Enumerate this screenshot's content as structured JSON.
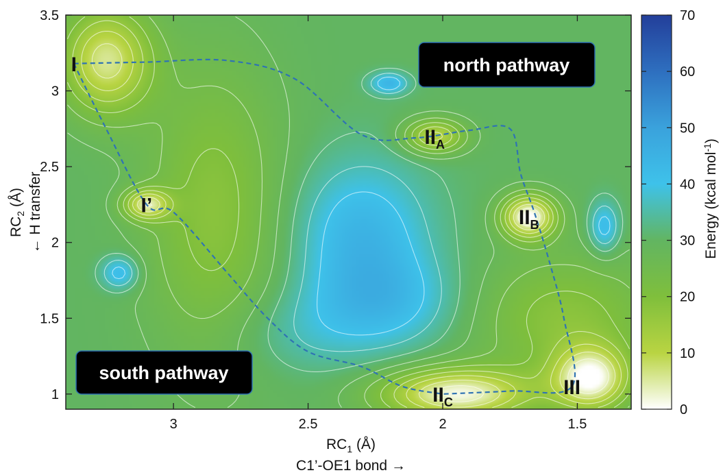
{
  "chart_data": {
    "type": "heatmap",
    "x_axis": {
      "label_main": "RC",
      "label_sub": "1",
      "label_unit": " (Å)",
      "label_second_line": "C1’-OE1 bond  →",
      "range": [
        3.4,
        1.3
      ],
      "reversed": true,
      "ticks": [
        3,
        2.5,
        2,
        1.5
      ],
      "tick_labels": [
        "3",
        "2.5",
        "2",
        "1.5"
      ]
    },
    "y_axis": {
      "label_main": "RC",
      "label_sub": "2",
      "label_unit": " (Å)",
      "label_second_line": "← H transfer",
      "range": [
        0.9,
        3.5
      ],
      "ticks": [
        1,
        1.5,
        2,
        2.5,
        3,
        3.5
      ],
      "tick_labels": [
        "1",
        "1.5",
        "2",
        "2.5",
        "3",
        "3.5"
      ]
    },
    "colorbar": {
      "label_main": "Energy (kcal mol",
      "label_sup": "-1",
      "label_end": ")",
      "range": [
        0,
        70
      ],
      "ticks": [
        0,
        10,
        20,
        30,
        40,
        50,
        60,
        70
      ],
      "tick_labels": [
        "0",
        "10",
        "20",
        "30",
        "40",
        "50",
        "60",
        "70"
      ],
      "colors": [
        {
          "value": 0,
          "color": "#ffffff"
        },
        {
          "value": 10,
          "color": "#b9d442"
        },
        {
          "value": 20,
          "color": "#7fbf3c"
        },
        {
          "value": 30,
          "color": "#62b561"
        },
        {
          "value": 40,
          "color": "#3ec2ea"
        },
        {
          "value": 50,
          "color": "#3aa2dc"
        },
        {
          "value": 60,
          "color": "#2e6fbf"
        },
        {
          "value": 70,
          "color": "#233f9a"
        }
      ]
    },
    "points": [
      {
        "id": "I",
        "main": "I",
        "sub": "",
        "x": 3.37,
        "y": 3.18
      },
      {
        "id": "Iprime",
        "main": "I’",
        "sub": "",
        "x": 3.1,
        "y": 2.25
      },
      {
        "id": "IIA",
        "main": "II",
        "sub": "A",
        "x": 2.03,
        "y": 2.7
      },
      {
        "id": "IIB",
        "main": "II",
        "sub": "B",
        "x": 1.68,
        "y": 2.17
      },
      {
        "id": "IIC",
        "main": "II",
        "sub": "C",
        "x": 2.0,
        "y": 1.0
      },
      {
        "id": "III",
        "main": "III",
        "sub": "",
        "x": 1.52,
        "y": 1.05
      }
    ],
    "north_path": [
      [
        3.37,
        3.18
      ],
      [
        3.1,
        3.19
      ],
      [
        2.8,
        3.2
      ],
      [
        2.55,
        3.08
      ],
      [
        2.3,
        2.71
      ],
      [
        2.1,
        2.69
      ],
      [
        1.9,
        2.74
      ],
      [
        1.75,
        2.75
      ],
      [
        1.71,
        2.45
      ],
      [
        1.66,
        2.2
      ],
      [
        1.6,
        1.85
      ],
      [
        1.55,
        1.5
      ],
      [
        1.52,
        1.05
      ],
      [
        1.75,
        1.02
      ],
      [
        2.0,
        1.0
      ]
    ],
    "south_path": [
      [
        3.37,
        3.18
      ],
      [
        3.25,
        2.75
      ],
      [
        3.1,
        2.25
      ],
      [
        3.0,
        2.2
      ],
      [
        2.8,
        1.8
      ],
      [
        2.65,
        1.5
      ],
      [
        2.5,
        1.28
      ],
      [
        2.3,
        1.18
      ],
      [
        2.15,
        1.05
      ],
      [
        2.0,
        1.0
      ]
    ],
    "basins": [
      {
        "x": 3.25,
        "y": 3.2,
        "depth": 24,
        "sx": 0.12,
        "sy": 0.25
      },
      {
        "x": 3.1,
        "y": 2.25,
        "depth": 22,
        "sx": 0.06,
        "sy": 0.07
      },
      {
        "x": 2.03,
        "y": 2.7,
        "depth": 20,
        "sx": 0.08,
        "sy": 0.08
      },
      {
        "x": 1.68,
        "y": 2.17,
        "depth": 30,
        "sx": 0.07,
        "sy": 0.1
      },
      {
        "x": 1.95,
        "y": 1.0,
        "depth": 28,
        "sx": 0.2,
        "sy": 0.12
      },
      {
        "x": 1.45,
        "y": 1.1,
        "depth": 27,
        "sx": 0.1,
        "sy": 0.15
      },
      {
        "x": 2.85,
        "y": 2.2,
        "depth": 12,
        "sx": 0.18,
        "sy": 0.7
      },
      {
        "x": 1.55,
        "y": 1.5,
        "depth": 12,
        "sx": 0.25,
        "sy": 0.3
      }
    ],
    "hills": [
      {
        "x": 2.3,
        "y": 2.05,
        "height": 14,
        "sx": 0.18,
        "sy": 0.35
      },
      {
        "x": 2.2,
        "y": 1.6,
        "height": 10,
        "sx": 0.2,
        "sy": 0.22
      },
      {
        "x": 3.2,
        "y": 1.8,
        "height": 13,
        "sx": 0.05,
        "sy": 0.08
      },
      {
        "x": 2.2,
        "y": 3.05,
        "height": 14,
        "sx": 0.05,
        "sy": 0.05
      },
      {
        "x": 1.4,
        "y": 2.1,
        "height": 13,
        "sx": 0.04,
        "sy": 0.12
      },
      {
        "x": 2.55,
        "y": 1.4,
        "height": 5,
        "sx": 0.2,
        "sy": 0.2
      }
    ],
    "annotations": [
      {
        "id": "north",
        "text": "north pathway"
      },
      {
        "id": "south",
        "text": "south pathway"
      }
    ],
    "path_color": "#2f73b3"
  }
}
